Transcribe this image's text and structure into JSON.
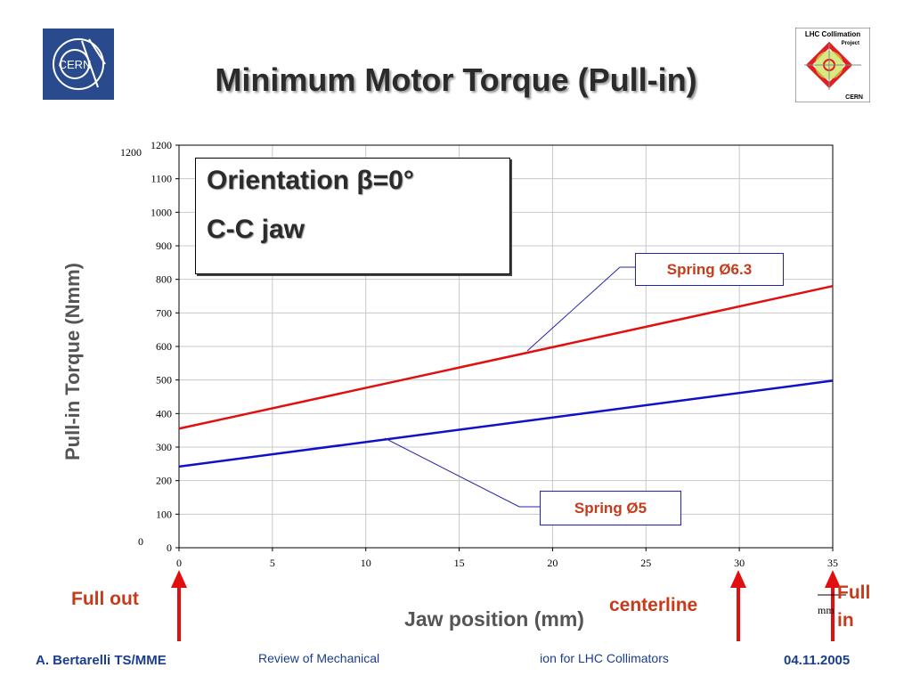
{
  "header": {
    "title": "Minimum Motor Torque (Pull-in)",
    "cern_logo_text": "CERN",
    "lhc_logo_lines": [
      "LHC Collimation",
      "Project",
      "CERN"
    ]
  },
  "annotation_box": {
    "line1": "Orientation β=0°",
    "line2": "C-C jaw"
  },
  "markers": {
    "full_out": "Full out",
    "centerline": "centerline",
    "full_in": "Full in",
    "color": "#e01010"
  },
  "axis_unit": "mm",
  "footer": {
    "author": "A. Bertarelli TS/MME",
    "title_left": "Review of Mechanical",
    "title_right": "ion for LHC Collimators",
    "date": "04.11.2005",
    "color": "#1a3d8c"
  },
  "chart_data": {
    "type": "line",
    "xlabel": "Jaw position (mm)",
    "ylabel": "Pull-in Torque (Nmm)",
    "xlim": [
      0,
      35
    ],
    "ylim": [
      0,
      1200
    ],
    "x_ticks": [
      0,
      5,
      10,
      15,
      20,
      25,
      30,
      35
    ],
    "y_ticks": [
      0,
      100,
      200,
      300,
      400,
      500,
      600,
      700,
      800,
      900,
      1000,
      1100,
      1200
    ],
    "extra_y_labels": [
      "1200",
      "0"
    ],
    "grid": true,
    "series": [
      {
        "name": "Spring Ø6.3",
        "color": "#e01010",
        "x": [
          0,
          35
        ],
        "y": [
          355,
          780
        ]
      },
      {
        "name": "Spring Ø5",
        "color": "#1010c8",
        "x": [
          0,
          35
        ],
        "y": [
          242,
          498
        ]
      }
    ]
  }
}
